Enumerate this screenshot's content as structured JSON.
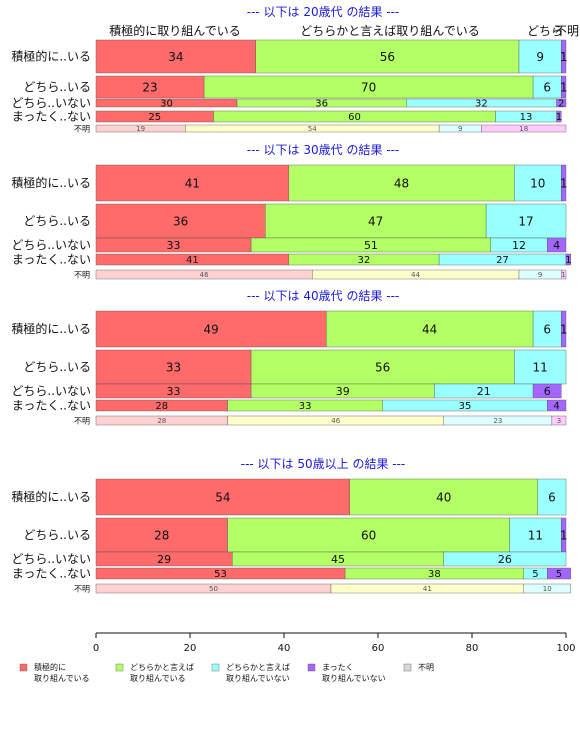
{
  "chart_data": {
    "type": "bar",
    "orientation": "horizontal",
    "stacked": true,
    "xlim": [
      0,
      100
    ],
    "x_ticks": [
      "0",
      "20",
      "40",
      "60",
      "80",
      "100"
    ],
    "column_header": [
      "積極的に取り組んでいる",
      "どちらかと言えば取り組んでいる",
      "どちら",
      "不明"
    ],
    "legend": [
      {
        "label": [
          "積極的に",
          "取り組んでいる"
        ],
        "color": "#FF6A6A"
      },
      {
        "label": [
          "どちらかと言えば",
          "取り組んでいる"
        ],
        "color": "#B3FF66"
      },
      {
        "label": [
          "どちらかと言えば",
          "取り組んでいない"
        ],
        "color": "#99FFFF"
      },
      {
        "label": [
          "まったく",
          "取り組んでいない"
        ],
        "color": "#A366FF"
      },
      {
        "label": [
          "不明"
        ],
        "color": "#D9D9D9"
      }
    ],
    "unknown_colors": [
      "#FFD1D1",
      "#FFFFCC",
      "#DDFFFF",
      "#FFCCFF"
    ],
    "panels": [
      {
        "title": "--- 以下は 20歳代 の結果 ---",
        "rows": [
          {
            "label": "積極的に..いる",
            "values": [
              34,
              56,
              9,
              1
            ]
          },
          {
            "label": "どちら..いる",
            "values": [
              23,
              70,
              6,
              1
            ]
          },
          {
            "label": "どちら..いない",
            "values": [
              30,
              36,
              32,
              2
            ]
          },
          {
            "label": "まったく..ない",
            "values": [
              25,
              60,
              13,
              1
            ]
          },
          {
            "label": "不明",
            "values": [
              19,
              54,
              9,
              18
            ]
          }
        ]
      },
      {
        "title": "--- 以下は 30歳代 の結果 ---",
        "rows": [
          {
            "label": "積極的に..いる",
            "values": [
              41,
              48,
              10,
              1
            ]
          },
          {
            "label": "どちら..いる",
            "values": [
              36,
              47,
              17,
              0
            ]
          },
          {
            "label": "どちら..いない",
            "values": [
              33,
              51,
              12,
              4
            ]
          },
          {
            "label": "まったく..ない",
            "values": [
              41,
              32,
              27,
              1
            ]
          },
          {
            "label": "不明",
            "values": [
              46,
              44,
              9,
              1
            ]
          }
        ]
      },
      {
        "title": "--- 以下は 40歳代 の結果 ---",
        "rows": [
          {
            "label": "積極的に..いる",
            "values": [
              49,
              44,
              6,
              1
            ]
          },
          {
            "label": "どちら..いる",
            "values": [
              33,
              56,
              11,
              0
            ]
          },
          {
            "label": "どちら..いない",
            "values": [
              33,
              39,
              21,
              6
            ]
          },
          {
            "label": "まったく..ない",
            "values": [
              28,
              33,
              35,
              4
            ]
          },
          {
            "label": "不明",
            "values": [
              28,
              46,
              23,
              3
            ]
          }
        ]
      },
      {
        "title": "--- 以下は 50歳以上 の結果 ---",
        "rows": [
          {
            "label": "積極的に..いる",
            "values": [
              54,
              40,
              6,
              0
            ]
          },
          {
            "label": "どちら..いる",
            "values": [
              28,
              60,
              11,
              1
            ]
          },
          {
            "label": "どちら..いない",
            "values": [
              29,
              45,
              26,
              0
            ]
          },
          {
            "label": "まったく..ない",
            "values": [
              53,
              38,
              5,
              5
            ]
          },
          {
            "label": "不明",
            "values": [
              50,
              41,
              10,
              0
            ]
          }
        ]
      }
    ]
  }
}
